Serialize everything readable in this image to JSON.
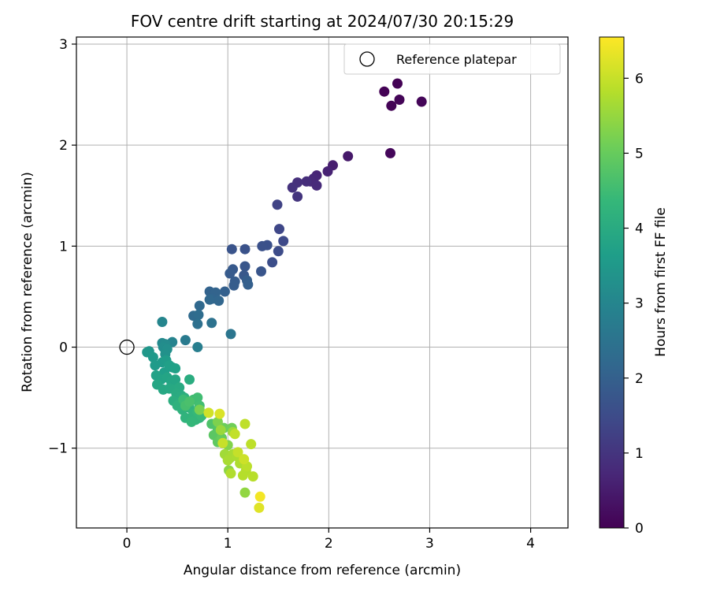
{
  "chart_data": {
    "type": "scatter",
    "title": "FOV centre drift starting at 2024/07/30 20:15:29",
    "xlabel": "Angular distance from reference (arcmin)",
    "ylabel": "Rotation from reference (arcmin)",
    "xlim": [
      -0.5,
      4.37
    ],
    "ylim": [
      -1.79,
      3.07
    ],
    "xticks": [
      0,
      1,
      2,
      3,
      4
    ],
    "xtick_labels": [
      "0",
      "1",
      "2",
      "3",
      "4"
    ],
    "yticks": [
      -1,
      0,
      1,
      2,
      3
    ],
    "ytick_labels": [
      "−1",
      "0",
      "1",
      "2",
      "3"
    ],
    "grid": true,
    "legend": {
      "location": "upper-right",
      "entries": [
        "Reference platepar"
      ]
    },
    "reference_point": {
      "label": "Reference platepar",
      "x": 0,
      "y": 0,
      "marker": "open-circle",
      "color": "#000000"
    },
    "colorbar": {
      "label": "Hours from first FF file",
      "range": [
        0,
        6.55
      ],
      "ticks": [
        0,
        1,
        2,
        3,
        4,
        5,
        6
      ],
      "tick_labels": [
        "0",
        "1",
        "2",
        "3",
        "4",
        "5",
        "6"
      ],
      "colormap": "viridis",
      "colors": [
        "#440154",
        "#482878",
        "#3e4a89",
        "#31688e",
        "#26828e",
        "#1f9e89",
        "#35b779",
        "#6ece58",
        "#b5de2b",
        "#fde725"
      ]
    },
    "series": [
      {
        "color_by": "hours",
        "points": [
          [
            2.55,
            2.53,
            0.02
          ],
          [
            2.68,
            2.61,
            0.03
          ],
          [
            2.62,
            2.39,
            0.05
          ],
          [
            2.7,
            2.45,
            0.07
          ],
          [
            2.92,
            2.43,
            0.08
          ],
          [
            2.61,
            1.92,
            0.12
          ],
          [
            2.19,
            1.89,
            0.45
          ],
          [
            2.04,
            1.8,
            0.55
          ],
          [
            1.99,
            1.74,
            0.62
          ],
          [
            1.88,
            1.7,
            0.68
          ],
          [
            1.85,
            1.67,
            0.72
          ],
          [
            1.82,
            1.64,
            0.76
          ],
          [
            1.88,
            1.6,
            0.8
          ],
          [
            1.78,
            1.64,
            0.85
          ],
          [
            1.69,
            1.63,
            0.9
          ],
          [
            1.64,
            1.58,
            0.95
          ],
          [
            1.69,
            1.49,
            1.0
          ],
          [
            1.49,
            1.41,
            1.3
          ],
          [
            1.51,
            1.17,
            1.4
          ],
          [
            1.55,
            1.05,
            1.45
          ],
          [
            1.5,
            0.95,
            1.5
          ],
          [
            1.44,
            0.84,
            1.55
          ],
          [
            1.39,
            1.01,
            1.6
          ],
          [
            1.34,
            1.0,
            1.62
          ],
          [
            1.17,
            0.97,
            1.66
          ],
          [
            1.04,
            0.97,
            1.7
          ],
          [
            1.33,
            0.75,
            1.72
          ],
          [
            1.17,
            0.8,
            1.76
          ],
          [
            1.16,
            0.71,
            1.8
          ],
          [
            1.05,
            0.77,
            1.82
          ],
          [
            1.02,
            0.73,
            1.86
          ],
          [
            1.07,
            0.65,
            1.9
          ],
          [
            1.06,
            0.61,
            1.92
          ],
          [
            1.19,
            0.66,
            1.95
          ],
          [
            1.2,
            0.62,
            1.98
          ],
          [
            0.97,
            0.55,
            2.0
          ],
          [
            0.82,
            0.55,
            2.05
          ],
          [
            0.88,
            0.54,
            2.08
          ],
          [
            0.85,
            0.48,
            2.12
          ],
          [
            0.91,
            0.46,
            2.15
          ],
          [
            0.82,
            0.47,
            2.18
          ],
          [
            0.72,
            0.41,
            2.22
          ],
          [
            0.66,
            0.31,
            2.28
          ],
          [
            0.71,
            0.32,
            2.32
          ],
          [
            0.7,
            0.23,
            2.4
          ],
          [
            0.84,
            0.24,
            2.45
          ],
          [
            1.03,
            0.13,
            2.55
          ],
          [
            0.58,
            0.07,
            2.7
          ],
          [
            0.7,
            0.0,
            2.8
          ],
          [
            0.45,
            0.05,
            2.95
          ],
          [
            0.35,
            0.25,
            3.0
          ],
          [
            0.35,
            0.04,
            3.1
          ],
          [
            0.38,
            0.03,
            3.15
          ],
          [
            0.36,
            0.0,
            3.2
          ],
          [
            0.4,
            -0.02,
            3.25
          ],
          [
            0.38,
            -0.07,
            3.3
          ],
          [
            0.22,
            -0.04,
            3.4
          ],
          [
            0.2,
            -0.05,
            3.45
          ],
          [
            0.26,
            -0.1,
            3.5
          ],
          [
            0.28,
            -0.18,
            3.55
          ],
          [
            0.35,
            -0.15,
            3.55
          ],
          [
            0.39,
            -0.13,
            3.58
          ],
          [
            0.45,
            -0.2,
            3.62
          ],
          [
            0.37,
            -0.25,
            3.66
          ],
          [
            0.42,
            -0.18,
            3.7
          ],
          [
            0.48,
            -0.21,
            3.72
          ],
          [
            0.29,
            -0.28,
            3.75
          ],
          [
            0.34,
            -0.32,
            3.78
          ],
          [
            0.4,
            -0.3,
            3.8
          ],
          [
            0.44,
            -0.34,
            3.83
          ],
          [
            0.48,
            -0.32,
            3.85
          ],
          [
            0.3,
            -0.37,
            3.88
          ],
          [
            0.36,
            -0.42,
            3.9
          ],
          [
            0.42,
            -0.41,
            3.92
          ],
          [
            0.47,
            -0.42,
            3.94
          ],
          [
            0.52,
            -0.4,
            3.96
          ],
          [
            0.49,
            -0.46,
            4.0
          ],
          [
            0.54,
            -0.48,
            4.02
          ],
          [
            0.62,
            -0.32,
            4.05
          ],
          [
            0.46,
            -0.53,
            4.08
          ],
          [
            0.52,
            -0.55,
            4.1
          ],
          [
            0.57,
            -0.5,
            4.12
          ],
          [
            0.6,
            -0.56,
            4.15
          ],
          [
            0.5,
            -0.58,
            4.18
          ],
          [
            0.55,
            -0.62,
            4.2
          ],
          [
            0.62,
            -0.6,
            4.22
          ],
          [
            0.58,
            -0.7,
            4.25
          ],
          [
            0.66,
            -0.66,
            4.28
          ],
          [
            0.68,
            -0.72,
            4.3
          ],
          [
            0.72,
            -0.7,
            4.32
          ],
          [
            0.64,
            -0.74,
            4.35
          ],
          [
            0.7,
            -0.64,
            4.38
          ],
          [
            0.74,
            -0.68,
            4.4
          ],
          [
            0.56,
            -0.52,
            4.45
          ],
          [
            0.66,
            -0.52,
            4.5
          ],
          [
            0.7,
            -0.5,
            4.52
          ],
          [
            0.72,
            -0.58,
            4.55
          ],
          [
            0.58,
            -0.58,
            4.6
          ],
          [
            0.62,
            -0.54,
            4.65
          ],
          [
            0.84,
            -0.76,
            4.7
          ],
          [
            0.9,
            -0.82,
            4.75
          ],
          [
            0.86,
            -0.87,
            4.85
          ],
          [
            0.9,
            -0.94,
            4.9
          ],
          [
            0.94,
            -0.9,
            5.0
          ],
          [
            0.96,
            -0.8,
            5.05
          ],
          [
            1.04,
            -0.8,
            5.1
          ],
          [
            0.72,
            -0.62,
            5.2
          ],
          [
            0.9,
            -0.74,
            5.25
          ],
          [
            1.0,
            -0.97,
            5.3
          ],
          [
            1.01,
            -1.22,
            5.4
          ],
          [
            1.17,
            -1.44,
            5.45
          ],
          [
            0.93,
            -0.82,
            5.55
          ],
          [
            1.05,
            -0.84,
            5.58
          ],
          [
            0.97,
            -1.06,
            5.62
          ],
          [
            1.02,
            -1.1,
            5.65
          ],
          [
            1.05,
            -1.06,
            5.68
          ],
          [
            1.0,
            -1.12,
            5.7
          ],
          [
            1.09,
            -1.08,
            5.72
          ],
          [
            1.12,
            -1.15,
            5.75
          ],
          [
            1.03,
            -1.25,
            5.78
          ],
          [
            1.18,
            -1.22,
            5.8
          ],
          [
            1.15,
            -1.27,
            5.82
          ],
          [
            1.25,
            -1.28,
            5.85
          ],
          [
            1.19,
            -1.18,
            5.88
          ],
          [
            1.23,
            -0.96,
            5.9
          ],
          [
            1.17,
            -0.76,
            5.92
          ],
          [
            1.07,
            -0.86,
            5.95
          ],
          [
            1.1,
            -1.04,
            5.98
          ],
          [
            0.95,
            -0.95,
            6.0
          ],
          [
            1.16,
            -1.11,
            6.05
          ],
          [
            0.81,
            -0.65,
            6.1
          ],
          [
            0.92,
            -0.66,
            6.2
          ],
          [
            1.31,
            -1.59,
            6.25
          ],
          [
            1.32,
            -1.48,
            6.45
          ]
        ]
      }
    ]
  }
}
